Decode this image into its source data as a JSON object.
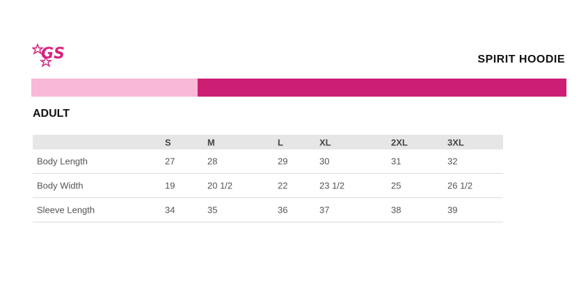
{
  "header": {
    "logo": "GS",
    "title": "SPIRIT HOODIE"
  },
  "section": "ADULT",
  "table": {
    "columns": [
      "S",
      "M",
      "L",
      "XL",
      "2XL",
      "3XL"
    ],
    "rows": [
      [
        "Body Length",
        27,
        28,
        29,
        30,
        31,
        32
      ],
      [
        "Body Width",
        19,
        "20 1/2",
        22,
        "23 1/2",
        25,
        "26 1/2"
      ],
      [
        "Sleeve Length",
        34,
        35,
        36,
        37,
        38,
        39
      ]
    ]
  }
}
